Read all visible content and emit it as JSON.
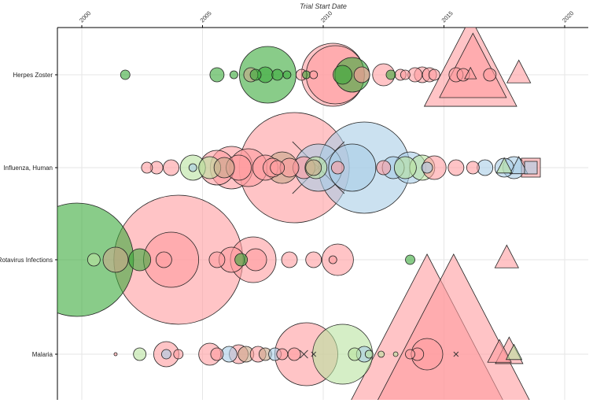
{
  "chart_data": {
    "type": "scatter",
    "subtype": "bubble",
    "title": "Trial Start Date",
    "xlabel": "",
    "ylabel": "",
    "x_axis_position": "top",
    "xlim": [
      1999.0,
      2021.0
    ],
    "x_ticks": [
      "2000",
      "2005",
      "2010",
      "2015",
      "2020"
    ],
    "categories": [
      "Herpes Zoster",
      "Influenza, Human",
      "Rotavirus Infections",
      "Malaria"
    ],
    "grid": true,
    "legend": "none",
    "colors": {
      "pink": "#ff9da0",
      "green": "#3aaa3a",
      "lightgreen": "#b9e3a0",
      "blue": "#a8cde6",
      "tan": "#c8a88a"
    },
    "series": [
      {
        "name": "Herpes Zoster",
        "points": [
          {
            "x": 2001.8,
            "s": 6,
            "c": "green",
            "m": "circle"
          },
          {
            "x": 2005.6,
            "s": 9,
            "c": "green",
            "m": "circle"
          },
          {
            "x": 2006.3,
            "s": 5,
            "c": "green",
            "m": "circle"
          },
          {
            "x": 2007.0,
            "s": 9,
            "c": "tan",
            "m": "circle"
          },
          {
            "x": 2007.2,
            "s": 7,
            "c": "green",
            "m": "circle"
          },
          {
            "x": 2007.7,
            "s": 36,
            "c": "green",
            "m": "circle"
          },
          {
            "x": 2007.6,
            "s": 10,
            "c": "green",
            "m": "circle"
          },
          {
            "x": 2008.1,
            "s": 7,
            "c": "green",
            "m": "circle"
          },
          {
            "x": 2008.5,
            "s": 5,
            "c": "green",
            "m": "circle"
          },
          {
            "x": 2009.1,
            "s": 7,
            "c": "pink",
            "m": "circle"
          },
          {
            "x": 2009.3,
            "s": 5,
            "c": "green",
            "m": "circle"
          },
          {
            "x": 2009.6,
            "s": 5,
            "c": "pink",
            "m": "circle"
          },
          {
            "x": 2010.4,
            "s": 40,
            "c": "pink",
            "m": "circle"
          },
          {
            "x": 2010.5,
            "s": 37,
            "c": "pink",
            "m": "circle"
          },
          {
            "x": 2011.2,
            "s": 22,
            "c": "green",
            "m": "circle"
          },
          {
            "x": 2010.8,
            "s": 12,
            "c": "green",
            "m": "circle"
          },
          {
            "x": 2011.6,
            "s": 10,
            "c": "pink",
            "m": "circle"
          },
          {
            "x": 2012.5,
            "s": 14,
            "c": "pink",
            "m": "circle"
          },
          {
            "x": 2012.8,
            "s": 6,
            "c": "green",
            "m": "circle"
          },
          {
            "x": 2013.2,
            "s": 7,
            "c": "pink",
            "m": "circle"
          },
          {
            "x": 2013.4,
            "s": 6,
            "c": "pink",
            "m": "circle"
          },
          {
            "x": 2013.8,
            "s": 9,
            "c": "pink",
            "m": "circle"
          },
          {
            "x": 2014.1,
            "s": 10,
            "c": "pink",
            "m": "circle"
          },
          {
            "x": 2014.4,
            "s": 9,
            "c": "pink",
            "m": "circle"
          },
          {
            "x": 2014.6,
            "s": 7,
            "c": "pink",
            "m": "circle"
          },
          {
            "x": 2015.5,
            "s": 9,
            "c": "pink",
            "m": "circle"
          },
          {
            "x": 2015.8,
            "s": 8,
            "c": "pink",
            "m": "circle"
          },
          {
            "x": 2016.1,
            "s": 6,
            "c": "pink",
            "m": "triangle"
          },
          {
            "x": 2016.1,
            "s": 47,
            "c": "pink",
            "m": "triangle"
          },
          {
            "x": 2016.2,
            "s": 34,
            "c": "pink",
            "m": "triangle"
          },
          {
            "x": 2016.9,
            "s": 8,
            "c": "pink",
            "m": "circle"
          },
          {
            "x": 2018.1,
            "s": 12,
            "c": "pink",
            "m": "triangle"
          }
        ]
      },
      {
        "name": "Influenza, Human",
        "points": [
          {
            "x": 2002.7,
            "s": 7,
            "c": "pink",
            "m": "circle"
          },
          {
            "x": 2003.1,
            "s": 8,
            "c": "pink",
            "m": "circle"
          },
          {
            "x": 2003.7,
            "s": 10,
            "c": "pink",
            "m": "circle"
          },
          {
            "x": 2004.6,
            "s": 16,
            "c": "lightgreen",
            "m": "circle"
          },
          {
            "x": 2004.6,
            "s": 5,
            "c": "blue",
            "m": "circle"
          },
          {
            "x": 2005.3,
            "s": 14,
            "c": "lightgreen",
            "m": "circle"
          },
          {
            "x": 2005.6,
            "s": 22,
            "c": "pink",
            "m": "circle"
          },
          {
            "x": 2005.9,
            "s": 13,
            "c": "tan",
            "m": "circle"
          },
          {
            "x": 2006.2,
            "s": 27,
            "c": "pink",
            "m": "circle"
          },
          {
            "x": 2006.5,
            "s": 16,
            "c": "pink",
            "m": "circle"
          },
          {
            "x": 2006.9,
            "s": 24,
            "c": "pink",
            "m": "circle"
          },
          {
            "x": 2007.6,
            "s": 16,
            "c": "pink",
            "m": "circle"
          },
          {
            "x": 2007.9,
            "s": 12,
            "c": "pink",
            "m": "circle"
          },
          {
            "x": 2008.3,
            "s": 20,
            "c": "tan",
            "m": "circle"
          },
          {
            "x": 2008.1,
            "s": 9,
            "c": "pink",
            "m": "circle"
          },
          {
            "x": 2008.6,
            "s": 12,
            "c": "pink",
            "m": "circle"
          },
          {
            "x": 2008.8,
            "s": 70,
            "c": "pink",
            "m": "circle"
          },
          {
            "x": 2009.2,
            "s": 14,
            "c": "pink",
            "m": "circle"
          },
          {
            "x": 2009.8,
            "s": 30,
            "c": "blue",
            "m": "circle"
          },
          {
            "x": 2009.7,
            "s": 14,
            "c": "lightgreen",
            "m": "circle"
          },
          {
            "x": 2009.6,
            "s": 10,
            "c": "tan",
            "m": "circle"
          },
          {
            "x": 2009.8,
            "s": 33,
            "c": "pink",
            "m": "cross"
          },
          {
            "x": 2010.6,
            "s": 8,
            "c": "pink",
            "m": "circle"
          },
          {
            "x": 2011.2,
            "s": 30,
            "c": "blue",
            "m": "circle"
          },
          {
            "x": 2011.7,
            "s": 58,
            "c": "blue",
            "m": "circle"
          },
          {
            "x": 2012.5,
            "s": 9,
            "c": "pink",
            "m": "circle"
          },
          {
            "x": 2012.9,
            "s": 14,
            "c": "blue",
            "m": "circle"
          },
          {
            "x": 2013.4,
            "s": 14,
            "c": "lightgreen",
            "m": "circle"
          },
          {
            "x": 2013.6,
            "s": 20,
            "c": "blue",
            "m": "circle"
          },
          {
            "x": 2014.1,
            "s": 16,
            "c": "lightgreen",
            "m": "circle"
          },
          {
            "x": 2014.3,
            "s": 7,
            "c": "blue",
            "m": "circle"
          },
          {
            "x": 2014.6,
            "s": 15,
            "c": "pink",
            "m": "circle"
          },
          {
            "x": 2015.5,
            "s": 10,
            "c": "pink",
            "m": "circle"
          },
          {
            "x": 2016.2,
            "s": 8,
            "c": "pink",
            "m": "circle"
          },
          {
            "x": 2016.7,
            "s": 10,
            "c": "blue",
            "m": "circle"
          },
          {
            "x": 2017.5,
            "s": 12,
            "c": "blue",
            "m": "circle"
          },
          {
            "x": 2017.9,
            "s": 14,
            "c": "blue",
            "m": "circle"
          },
          {
            "x": 2017.5,
            "s": 8,
            "c": "lightgreen",
            "m": "triangle"
          },
          {
            "x": 2018.1,
            "s": 9,
            "c": "blue",
            "m": "triangle"
          },
          {
            "x": 2018.6,
            "s": 12,
            "c": "pink",
            "m": "square"
          },
          {
            "x": 2018.6,
            "s": 8,
            "c": "blue",
            "m": "square"
          }
        ]
      },
      {
        "name": "Rotavirus Infections",
        "points": [
          {
            "x": 1999.8,
            "s": 72,
            "c": "green",
            "m": "circle"
          },
          {
            "x": 2000.5,
            "s": 8,
            "c": "lightgreen",
            "m": "circle"
          },
          {
            "x": 2001.4,
            "s": 16,
            "c": "tan",
            "m": "circle"
          },
          {
            "x": 2002.4,
            "s": 14,
            "c": "green",
            "m": "circle"
          },
          {
            "x": 2003.4,
            "s": 10,
            "c": "pink",
            "m": "circle"
          },
          {
            "x": 2004.0,
            "s": 82,
            "c": "pink",
            "m": "circle"
          },
          {
            "x": 2003.7,
            "s": 35,
            "c": "pink",
            "m": "circle"
          },
          {
            "x": 2005.6,
            "s": 10,
            "c": "pink",
            "m": "circle"
          },
          {
            "x": 2006.2,
            "s": 16,
            "c": "pink",
            "m": "circle"
          },
          {
            "x": 2006.6,
            "s": 8,
            "c": "green",
            "m": "circle"
          },
          {
            "x": 2007.1,
            "s": 29,
            "c": "pink",
            "m": "circle"
          },
          {
            "x": 2007.2,
            "s": 14,
            "c": "pink",
            "m": "circle"
          },
          {
            "x": 2008.6,
            "s": 10,
            "c": "pink",
            "m": "circle"
          },
          {
            "x": 2009.6,
            "s": 10,
            "c": "pink",
            "m": "circle"
          },
          {
            "x": 2010.6,
            "s": 20,
            "c": "pink",
            "m": "circle"
          },
          {
            "x": 2010.4,
            "s": 5,
            "c": "pink",
            "m": "circle"
          },
          {
            "x": 2013.6,
            "s": 6,
            "c": "green",
            "m": "circle"
          },
          {
            "x": 2017.6,
            "s": 12,
            "c": "pink",
            "m": "triangle"
          }
        ]
      },
      {
        "name": "Malaria",
        "points": [
          {
            "x": 2001.4,
            "s": 2,
            "c": "pink",
            "m": "circle"
          },
          {
            "x": 2002.4,
            "s": 8,
            "c": "lightgreen",
            "m": "circle"
          },
          {
            "x": 2003.5,
            "s": 16,
            "c": "pink",
            "m": "circle"
          },
          {
            "x": 2003.5,
            "s": 6,
            "c": "blue",
            "m": "circle"
          },
          {
            "x": 2004.0,
            "s": 6,
            "c": "pink",
            "m": "circle"
          },
          {
            "x": 2005.3,
            "s": 14,
            "c": "pink",
            "m": "circle"
          },
          {
            "x": 2005.6,
            "s": 8,
            "c": "pink",
            "m": "circle"
          },
          {
            "x": 2006.1,
            "s": 10,
            "c": "blue",
            "m": "circle"
          },
          {
            "x": 2006.5,
            "s": 12,
            "c": "pink",
            "m": "circle"
          },
          {
            "x": 2006.8,
            "s": 10,
            "c": "tan",
            "m": "circle"
          },
          {
            "x": 2007.3,
            "s": 10,
            "c": "pink",
            "m": "circle"
          },
          {
            "x": 2007.6,
            "s": 8,
            "c": "tan",
            "m": "circle"
          },
          {
            "x": 2008.0,
            "s": 8,
            "c": "blue",
            "m": "circle"
          },
          {
            "x": 2008.3,
            "s": 7,
            "c": "pink",
            "m": "circle"
          },
          {
            "x": 2009.3,
            "s": 40,
            "c": "pink",
            "m": "circle"
          },
          {
            "x": 2008.8,
            "s": 8,
            "c": "pink",
            "m": "circle"
          },
          {
            "x": 2009.2,
            "s": 5,
            "c": "pink",
            "m": "cross"
          },
          {
            "x": 2009.6,
            "s": 3,
            "c": "pink",
            "m": "cross"
          },
          {
            "x": 2010.8,
            "s": 38,
            "c": "lightgreen",
            "m": "circle"
          },
          {
            "x": 2011.3,
            "s": 8,
            "c": "lightgreen",
            "m": "circle"
          },
          {
            "x": 2011.7,
            "s": 10,
            "c": "blue",
            "m": "circle"
          },
          {
            "x": 2011.9,
            "s": 5,
            "c": "lightgreen",
            "m": "circle"
          },
          {
            "x": 2012.4,
            "s": 4,
            "c": "lightgreen",
            "m": "circle"
          },
          {
            "x": 2013.0,
            "s": 3,
            "c": "lightgreen",
            "m": "circle"
          },
          {
            "x": 2013.6,
            "s": 6,
            "c": "pink",
            "m": "circle"
          },
          {
            "x": 2013.9,
            "s": 8,
            "c": "pink",
            "m": "circle"
          },
          {
            "x": 2014.3,
            "s": 20,
            "c": "pink",
            "m": "circle"
          },
          {
            "x": 2014.3,
            "s": 82,
            "c": "pink",
            "m": "triangle"
          },
          {
            "x": 2015.4,
            "s": 82,
            "c": "pink",
            "m": "triangle"
          },
          {
            "x": 2015.5,
            "s": 3,
            "c": "pink",
            "m": "cross"
          },
          {
            "x": 2017.3,
            "s": 12,
            "c": "pink",
            "m": "triangle"
          },
          {
            "x": 2017.7,
            "s": 14,
            "c": "pink",
            "m": "triangle"
          },
          {
            "x": 2017.9,
            "s": 8,
            "c": "lightgreen",
            "m": "triangle"
          }
        ]
      }
    ]
  }
}
